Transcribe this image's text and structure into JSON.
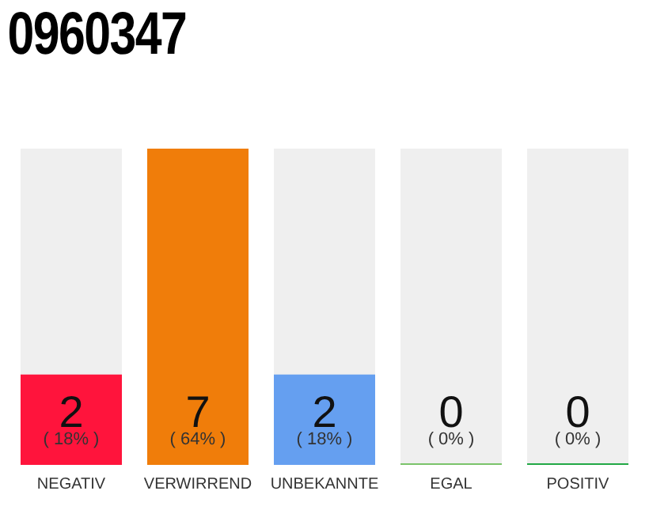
{
  "chart_data": {
    "type": "bar",
    "title": "0960347",
    "categories": [
      "NEGATIV",
      "VERWIRREND",
      "UNBEKANNTE",
      "EGAL",
      "POSITIV"
    ],
    "values": [
      2,
      7,
      2,
      0,
      0
    ],
    "colors": [
      "#ff143c",
      "#f07d0a",
      "#659ff0",
      "#7ac36a",
      "#22a845"
    ],
    "ylim": [
      0,
      7
    ],
    "tick_labels": "x",
    "data_labels": true,
    "annotations": [
      "( 18% )",
      "( 64% )",
      "( 18% )",
      "( 0% )",
      "( 0% )"
    ]
  }
}
